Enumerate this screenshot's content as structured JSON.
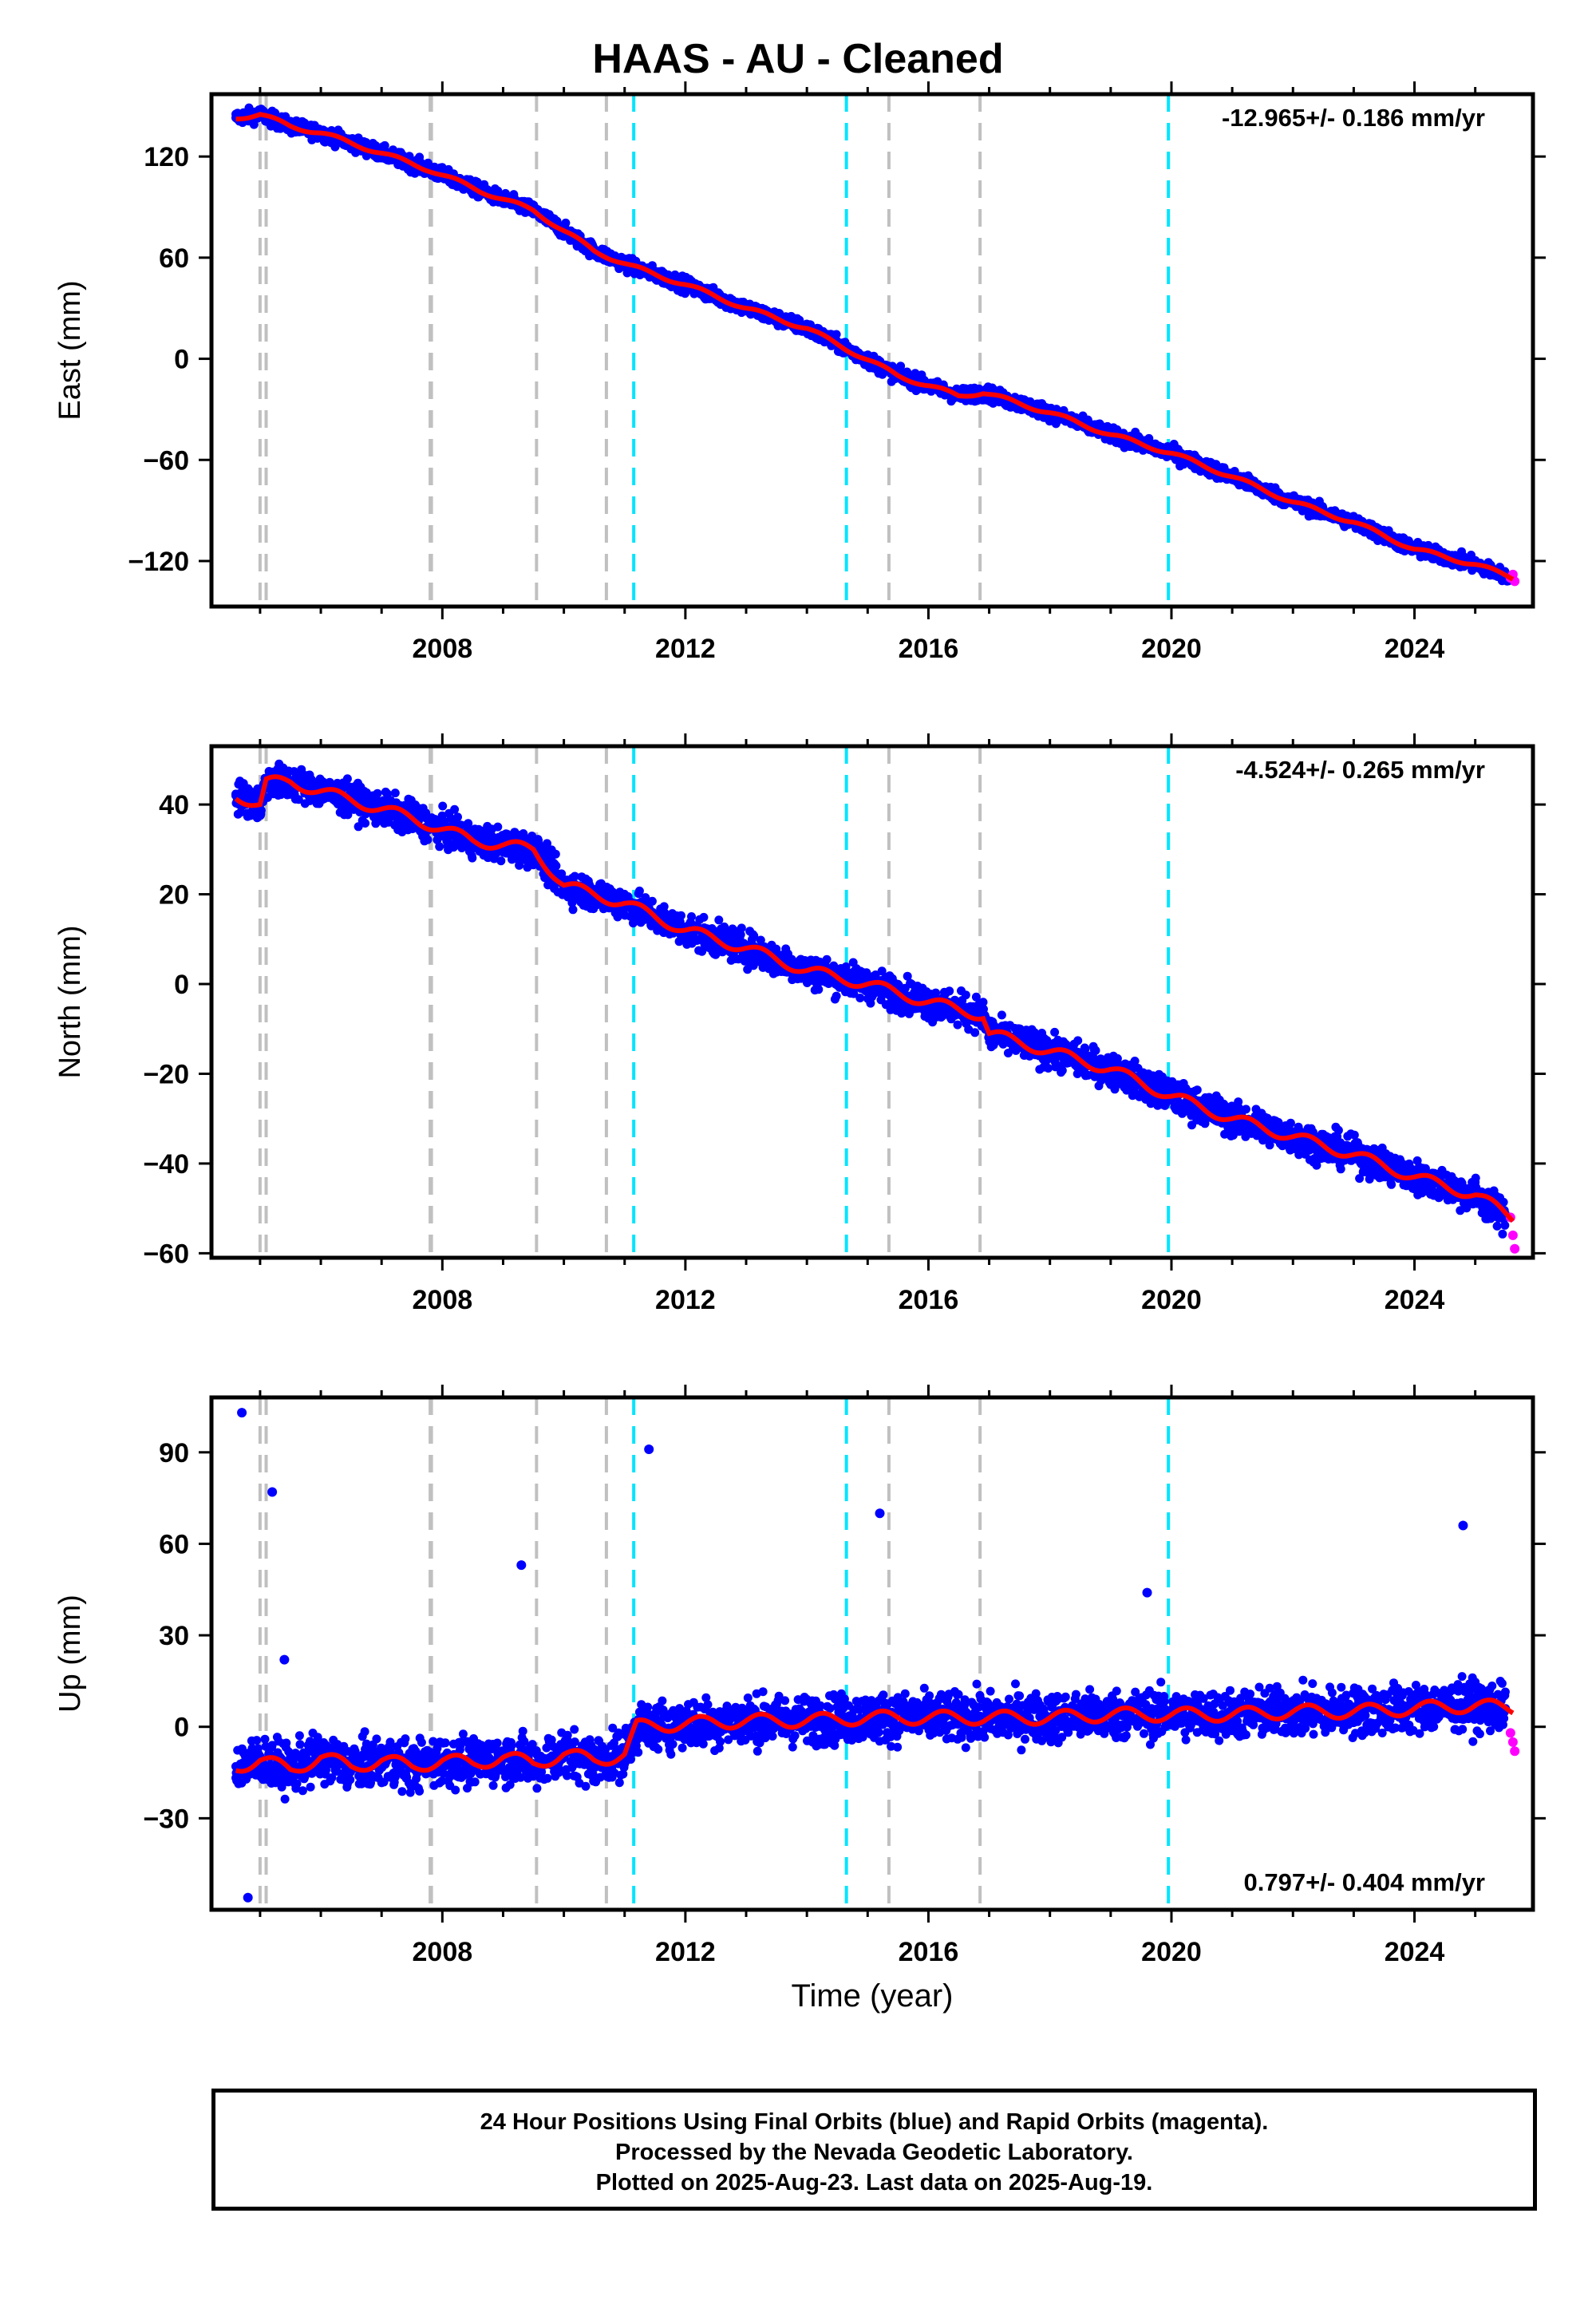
{
  "title": "HAAS  - AU - Cleaned",
  "xlabel": "Time (year)",
  "colors": {
    "final_orbits": "#0000ff",
    "rapid_orbits": "#ff00ff",
    "model": "#ff0000",
    "equipment_change": "#c0c0c0",
    "earthquake": "#00e5ff"
  },
  "footer": {
    "line1": "24 Hour Positions Using Final Orbits (blue) and Rapid Orbits (magenta).",
    "line2": "Processed by the Nevada Geodetic Laboratory.",
    "line3": "Plotted on 2025-Aug-23. Last data on 2025-Aug-19."
  },
  "chart_data": [
    {
      "type": "scatter",
      "component": "East",
      "ylabel": "East (mm)",
      "rate_label": "-12.965+/- 0.186 mm/yr",
      "xlim": [
        2004.2,
        2025.95
      ],
      "ylim": [
        -147,
        157
      ],
      "xticks": [
        2008,
        2012,
        2016,
        2020,
        2024
      ],
      "yticks": [
        -120,
        -60,
        0,
        60,
        120
      ],
      "series": [
        {
          "name": "Final Orbits",
          "color": "blue",
          "x": [
            2004.6,
            2005.0,
            2005.5,
            2006.0,
            2007.0,
            2007.8,
            2008.6,
            2009.5,
            2010.5,
            2011.1,
            2012.0,
            2013.0,
            2014.0,
            2014.7,
            2015.5,
            2016.5,
            2016.9,
            2018.0,
            2019.0,
            2020.0,
            2021.0,
            2022.0,
            2023.0,
            2024.0,
            2025.0,
            2025.55
          ],
          "y": [
            143,
            145,
            138,
            134,
            122,
            112,
            100,
            88,
            64,
            55,
            44,
            30,
            18,
            5,
            -10,
            -22,
            -20,
            -32,
            -45,
            -56,
            -70,
            -85,
            -97,
            -113,
            -122,
            -130
          ]
        },
        {
          "name": "Rapid Orbits",
          "color": "magenta",
          "x": [
            2025.58,
            2025.62,
            2025.65
          ],
          "y": [
            -130,
            -128,
            -132
          ]
        }
      ],
      "model": {
        "x": [
          2004.6,
          2005.0,
          2005.5,
          2006.0,
          2007.0,
          2007.8,
          2008.6,
          2009.5,
          2010.5,
          2011.1,
          2012.0,
          2013.0,
          2014.0,
          2014.7,
          2015.5,
          2016.5,
          2016.9,
          2018.0,
          2019.0,
          2020.0,
          2021.0,
          2022.0,
          2023.0,
          2024.0,
          2025.0,
          2025.62
        ],
        "y": [
          143,
          145,
          138,
          134,
          122,
          112,
          100,
          88,
          64,
          55,
          44,
          30,
          18,
          5,
          -10,
          -22,
          -20,
          -32,
          -45,
          -56,
          -70,
          -85,
          -97,
          -113,
          -122,
          -130
        ]
      }
    },
    {
      "type": "scatter",
      "component": "North",
      "ylabel": "North (mm)",
      "rate_label": "-4.524+/- 0.265 mm/yr",
      "xlim": [
        2004.2,
        2025.95
      ],
      "ylim": [
        -61,
        53
      ],
      "xticks": [
        2008,
        2012,
        2016,
        2020,
        2024
      ],
      "yticks": [
        -60,
        -40,
        -20,
        0,
        20,
        40
      ],
      "series": [
        {
          "name": "Final Orbits",
          "color": "blue",
          "x": [
            2004.6,
            2005.0,
            2005.1,
            2005.5,
            2006.5,
            2007.5,
            2008.5,
            2009.5,
            2010.0,
            2011.0,
            2012.0,
            2013.0,
            2014.0,
            2015.0,
            2016.0,
            2016.9,
            2017.0,
            2018.0,
            2019.0,
            2020.0,
            2021.0,
            2022.0,
            2023.0,
            2024.0,
            2025.0,
            2025.5
          ],
          "y": [
            42,
            40,
            45,
            45,
            41,
            37,
            32,
            30,
            22,
            18,
            12,
            8,
            3,
            0,
            -4,
            -7,
            -11,
            -15,
            -19,
            -25,
            -30,
            -34,
            -38,
            -43,
            -47,
            -52
          ]
        },
        {
          "name": "Rapid Orbits",
          "color": "magenta",
          "x": [
            2025.58,
            2025.62,
            2025.65
          ],
          "y": [
            -52,
            -56,
            -59
          ]
        }
      ],
      "model": {
        "x": [
          2004.6,
          2005.0,
          2005.1,
          2005.5,
          2006.5,
          2007.5,
          2008.5,
          2009.5,
          2010.0,
          2011.0,
          2012.0,
          2013.0,
          2014.0,
          2015.0,
          2016.0,
          2016.9,
          2017.0,
          2018.0,
          2019.0,
          2020.0,
          2021.0,
          2022.0,
          2023.0,
          2024.0,
          2025.0,
          2025.62
        ],
        "y": [
          42,
          40,
          45,
          45,
          41,
          37,
          32,
          30,
          22,
          18,
          12,
          8,
          3,
          0,
          -4,
          -7,
          -11,
          -15,
          -19,
          -25,
          -30,
          -34,
          -38,
          -43,
          -47,
          -52
        ]
      }
    },
    {
      "type": "scatter",
      "component": "Up",
      "ylabel": "Up (mm)",
      "rate_label": "0.797+/- 0.404 mm/yr",
      "xlim": [
        2004.2,
        2025.95
      ],
      "ylim": [
        -60,
        108
      ],
      "xticks": [
        2008,
        2012,
        2016,
        2020,
        2024
      ],
      "yticks": [
        -30,
        0,
        30,
        60,
        90
      ],
      "series": [
        {
          "name": "Final Orbits",
          "color": "blue",
          "x": [
            2004.6,
            2005.0,
            2005.5,
            2006.0,
            2006.5,
            2007.0,
            2007.5,
            2008.0,
            2008.5,
            2009.0,
            2009.5,
            2010.0,
            2010.5,
            2011.0,
            2011.2,
            2012.0,
            2013.0,
            2014.0,
            2015.0,
            2016.0,
            2017.0,
            2018.0,
            2019.0,
            2020.0,
            2021.0,
            2022.0,
            2023.0,
            2024.0,
            2025.0,
            2025.5
          ],
          "y": [
            -13,
            -11,
            -14,
            -10,
            -13,
            -11,
            -13,
            -11,
            -12,
            -10,
            -12,
            -9,
            -11,
            -9,
            0,
            1,
            2,
            2,
            3,
            3,
            3,
            3,
            4,
            4,
            4,
            5,
            5,
            6,
            7,
            6
          ]
        },
        {
          "name": "Rapid Orbits",
          "color": "magenta",
          "x": [
            2025.58,
            2025.62,
            2025.65
          ],
          "y": [
            -2,
            -5,
            -8
          ]
        },
        {
          "name": "Outliers",
          "color": "blue",
          "x": [
            2004.7,
            2005.2,
            2005.4,
            2009.3,
            2011.4,
            2015.2,
            2019.6,
            2024.8,
            2004.8
          ],
          "y": [
            103,
            77,
            22,
            53,
            91,
            70,
            44,
            66,
            -56
          ]
        }
      ],
      "model": {
        "x": [
          2004.6,
          2005.0,
          2005.5,
          2006.0,
          2006.5,
          2007.0,
          2007.5,
          2008.0,
          2008.5,
          2009.0,
          2009.5,
          2010.0,
          2010.5,
          2011.0,
          2011.2,
          2012.0,
          2013.0,
          2014.0,
          2015.0,
          2016.0,
          2017.0,
          2018.0,
          2019.0,
          2020.0,
          2021.0,
          2022.0,
          2023.0,
          2024.0,
          2025.0,
          2025.62
        ],
        "y": [
          -13,
          -11,
          -14,
          -10,
          -13,
          -11,
          -13,
          -11,
          -12,
          -10,
          -12,
          -9,
          -11,
          -9,
          0,
          1,
          2,
          2,
          3,
          3,
          3,
          3,
          4,
          4,
          4,
          5,
          5,
          6,
          7,
          6
        ]
      }
    }
  ],
  "event_lines": {
    "equipment_change": [
      2005.0,
      2005.1,
      2007.8,
      2007.82,
      2009.55,
      2010.7,
      2015.35,
      2016.85
    ],
    "earthquake": [
      2011.15,
      2014.65,
      2019.95
    ]
  }
}
